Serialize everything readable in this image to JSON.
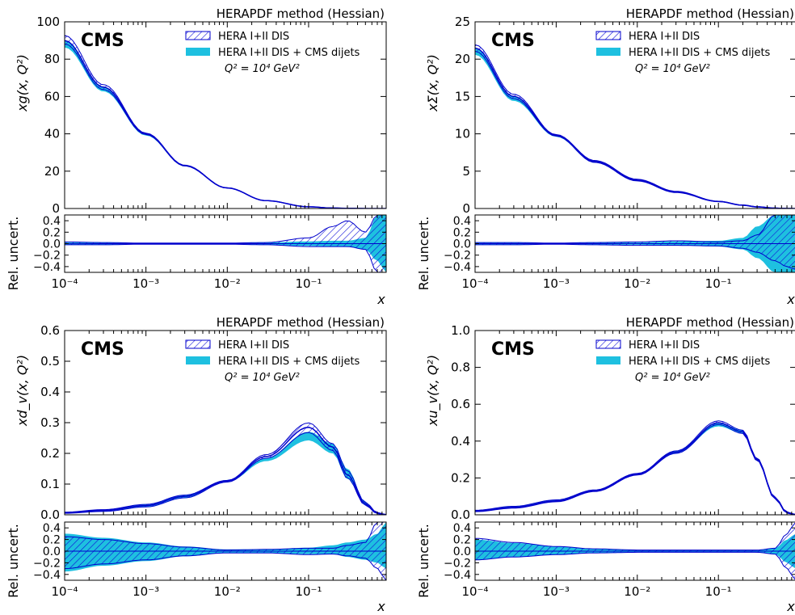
{
  "colors": {
    "hatch": "#1010d8",
    "hatch_edge": "#0000cc",
    "cms_band": "#1ec0e0",
    "cms_line": "#1ec0e0",
    "axis": "#000000"
  },
  "chart_data": [
    {
      "type": "area",
      "collaboration_label": "CMS",
      "method_label": "HERAPDF method (Hessian)",
      "q2_label": "Q² = 10⁴ GeV²",
      "ylabel": "xg(x, Q²)",
      "xlabel": "x",
      "ratio_ylabel": "Rel. uncert.",
      "xscale": "log",
      "xlim": [
        0.0001,
        0.9
      ],
      "ylim": [
        0,
        100
      ],
      "yticks": [
        "0",
        "20",
        "40",
        "60",
        "80",
        "100"
      ],
      "ratio_ylim": [
        -0.5,
        0.5
      ],
      "ratio_yticks": [
        "−0.4",
        "−0.2",
        "0.0",
        "0.2",
        "0.4"
      ],
      "xticks": [
        "10⁻⁴",
        "10⁻³",
        "10⁻²",
        "10⁻¹"
      ],
      "legend": [
        "HERA I+II DIS",
        "HERA I+II DIS + CMS dijets"
      ],
      "legend_position": "top-center",
      "x": [
        0.0001,
        0.0003,
        0.001,
        0.003,
        0.01,
        0.03,
        0.1,
        0.2,
        0.3,
        0.5,
        0.7,
        0.9
      ],
      "series": [
        {
          "name": "HERA I+II DIS",
          "values": [
            90,
            65,
            40,
            23,
            11,
            4.2,
            0.9,
            0.25,
            0.1,
            0.02,
            0.005,
            0.001
          ],
          "rel_up": [
            0.03,
            0.02,
            0.01,
            0.01,
            0.01,
            0.02,
            0.1,
            0.3,
            0.4,
            0.2,
            0.5,
            0.5
          ],
          "rel_down": [
            -0.02,
            -0.02,
            -0.01,
            -0.01,
            -0.01,
            -0.02,
            -0.05,
            -0.05,
            -0.05,
            -0.1,
            -0.5,
            -0.5
          ]
        },
        {
          "name": "HERA I+II DIS + CMS dijets",
          "values": [
            88,
            64,
            39.5,
            22.8,
            10.9,
            4.1,
            0.85,
            0.22,
            0.08,
            0.018,
            0.004,
            0.001
          ],
          "rel_up": [
            0.02,
            0.02,
            0.01,
            0.01,
            0.01,
            0.02,
            0.04,
            0.05,
            0.05,
            0.1,
            0.5,
            0.5
          ],
          "rel_down": [
            -0.02,
            -0.02,
            -0.01,
            -0.01,
            -0.01,
            -0.02,
            -0.04,
            -0.05,
            -0.05,
            -0.1,
            -0.3,
            -0.5
          ]
        }
      ]
    },
    {
      "type": "area",
      "collaboration_label": "CMS",
      "method_label": "HERAPDF method (Hessian)",
      "q2_label": "Q² = 10⁴ GeV²",
      "ylabel": "xΣ(x, Q²)",
      "xlabel": "x",
      "ratio_ylabel": "Rel. uncert.",
      "xscale": "log",
      "xlim": [
        0.0001,
        0.9
      ],
      "ylim": [
        0,
        25
      ],
      "yticks": [
        "0",
        "5",
        "10",
        "15",
        "20",
        "25"
      ],
      "ratio_ylim": [
        -0.5,
        0.5
      ],
      "ratio_yticks": [
        "−0.4",
        "−0.2",
        "0.0",
        "0.2",
        "0.4"
      ],
      "xticks": [
        "10⁻⁴",
        "10⁻³",
        "10⁻²",
        "10⁻¹"
      ],
      "legend": [
        "HERA I+II DIS",
        "HERA I+II DIS + CMS dijets"
      ],
      "legend_position": "top-center",
      "x": [
        0.0001,
        0.0003,
        0.001,
        0.003,
        0.01,
        0.03,
        0.1,
        0.2,
        0.3,
        0.5,
        0.7,
        0.9
      ],
      "series": [
        {
          "name": "HERA I+II DIS",
          "values": [
            21.5,
            15,
            9.8,
            6.3,
            3.8,
            2.2,
            0.95,
            0.45,
            0.22,
            0.05,
            0.01,
            0.002
          ],
          "rel_up": [
            0.02,
            0.02,
            0.01,
            0.02,
            0.03,
            0.05,
            0.03,
            0.05,
            0.15,
            0.5,
            0.5,
            0.5
          ],
          "rel_down": [
            -0.02,
            -0.02,
            -0.01,
            -0.02,
            -0.03,
            -0.03,
            -0.04,
            -0.08,
            -0.15,
            -0.3,
            -0.4,
            -0.45
          ]
        },
        {
          "name": "HERA I+II DIS + CMS dijets",
          "values": [
            21,
            14.7,
            9.7,
            6.25,
            3.75,
            2.18,
            0.94,
            0.44,
            0.21,
            0.05,
            0.01,
            0.002
          ],
          "rel_up": [
            0.02,
            0.02,
            0.01,
            0.02,
            0.02,
            0.04,
            0.05,
            0.1,
            0.3,
            0.5,
            0.5,
            0.5
          ],
          "rel_down": [
            -0.02,
            -0.02,
            -0.01,
            -0.02,
            -0.02,
            -0.03,
            -0.05,
            -0.1,
            -0.25,
            -0.5,
            -0.5,
            -0.5
          ]
        }
      ]
    },
    {
      "type": "area",
      "collaboration_label": "CMS",
      "method_label": "HERAPDF method (Hessian)",
      "q2_label": "Q² = 10⁴ GeV²",
      "ylabel": "xd_v(x, Q²)",
      "xlabel": "x",
      "ratio_ylabel": "Rel. uncert.",
      "xscale": "log",
      "xlim": [
        0.0001,
        0.9
      ],
      "ylim": [
        0,
        0.6
      ],
      "yticks": [
        "0.0",
        "0.1",
        "0.2",
        "0.3",
        "0.4",
        "0.5",
        "0.6"
      ],
      "ratio_ylim": [
        -0.5,
        0.5
      ],
      "ratio_yticks": [
        "−0.4",
        "−0.2",
        "0.0",
        "0.2",
        "0.4"
      ],
      "xticks": [
        "10⁻⁴",
        "10⁻³",
        "10⁻²",
        "10⁻¹"
      ],
      "legend": [
        "HERA I+II DIS",
        "HERA I+II DIS + CMS dijets"
      ],
      "legend_position": "top-center",
      "x": [
        0.0001,
        0.0003,
        0.001,
        0.003,
        0.01,
        0.03,
        0.1,
        0.2,
        0.3,
        0.5,
        0.7,
        0.9
      ],
      "series": [
        {
          "name": "HERA I+II DIS",
          "values": [
            0.007,
            0.014,
            0.03,
            0.06,
            0.11,
            0.19,
            0.285,
            0.22,
            0.13,
            0.035,
            0.005,
            0.0005
          ],
          "rel_up": [
            0.25,
            0.2,
            0.13,
            0.07,
            0.02,
            0.03,
            0.05,
            0.05,
            0.1,
            0.15,
            0.5,
            0.5
          ],
          "rel_down": [
            -0.3,
            -0.22,
            -0.15,
            -0.08,
            -0.03,
            -0.03,
            -0.06,
            -0.05,
            -0.08,
            -0.12,
            -0.3,
            -0.5
          ]
        },
        {
          "name": "HERA I+II DIS + CMS dijets",
          "values": [
            0.007,
            0.014,
            0.03,
            0.06,
            0.11,
            0.18,
            0.255,
            0.21,
            0.13,
            0.035,
            0.005,
            0.0005
          ],
          "rel_up": [
            0.3,
            0.23,
            0.15,
            0.08,
            0.03,
            0.03,
            0.06,
            0.1,
            0.15,
            0.2,
            0.3,
            0.5
          ],
          "rel_down": [
            -0.35,
            -0.25,
            -0.17,
            -0.09,
            -0.03,
            -0.03,
            -0.05,
            -0.05,
            -0.1,
            -0.15,
            -0.2,
            -0.3
          ]
        }
      ]
    },
    {
      "type": "area",
      "collaboration_label": "CMS",
      "method_label": "HERAPDF method (Hessian)",
      "q2_label": "Q² = 10⁴ GeV²",
      "ylabel": "xu_v(x, Q²)",
      "xlabel": "x",
      "ratio_ylabel": "Rel. uncert.",
      "xscale": "log",
      "xlim": [
        0.0001,
        0.9
      ],
      "ylim": [
        0,
        1.0
      ],
      "yticks": [
        "0.0",
        "0.2",
        "0.4",
        "0.6",
        "0.8",
        "1.0"
      ],
      "ratio_ylim": [
        -0.5,
        0.5
      ],
      "ratio_yticks": [
        "−0.4",
        "−0.2",
        "0.0",
        "0.2",
        "0.4"
      ],
      "xticks": [
        "10⁻⁴",
        "10⁻³",
        "10⁻²",
        "10⁻¹"
      ],
      "legend": [
        "HERA I+II DIS",
        "HERA I+II DIS + CMS dijets"
      ],
      "legend_position": "top-center",
      "x": [
        0.0001,
        0.0003,
        0.001,
        0.003,
        0.01,
        0.03,
        0.1,
        0.2,
        0.3,
        0.5,
        0.7,
        0.9
      ],
      "series": [
        {
          "name": "HERA I+II DIS",
          "values": [
            0.02,
            0.04,
            0.075,
            0.13,
            0.22,
            0.34,
            0.5,
            0.45,
            0.3,
            0.09,
            0.012,
            0.001
          ],
          "rel_up": [
            0.22,
            0.15,
            0.08,
            0.04,
            0.02,
            0.02,
            0.02,
            0.02,
            0.02,
            0.05,
            0.3,
            0.5
          ],
          "rel_down": [
            -0.15,
            -0.1,
            -0.06,
            -0.03,
            -0.02,
            -0.02,
            -0.02,
            -0.02,
            -0.02,
            -0.05,
            -0.3,
            -0.5
          ]
        },
        {
          "name": "HERA I+II DIS + CMS dijets",
          "values": [
            0.02,
            0.04,
            0.075,
            0.13,
            0.22,
            0.34,
            0.49,
            0.45,
            0.3,
            0.09,
            0.012,
            0.001
          ],
          "rel_up": [
            0.2,
            0.14,
            0.08,
            0.04,
            0.02,
            0.02,
            0.02,
            0.02,
            0.02,
            0.05,
            0.2,
            0.3
          ],
          "rel_down": [
            -0.15,
            -0.1,
            -0.06,
            -0.03,
            -0.02,
            -0.02,
            -0.02,
            -0.02,
            -0.02,
            -0.05,
            -0.2,
            -0.3
          ]
        }
      ]
    }
  ]
}
